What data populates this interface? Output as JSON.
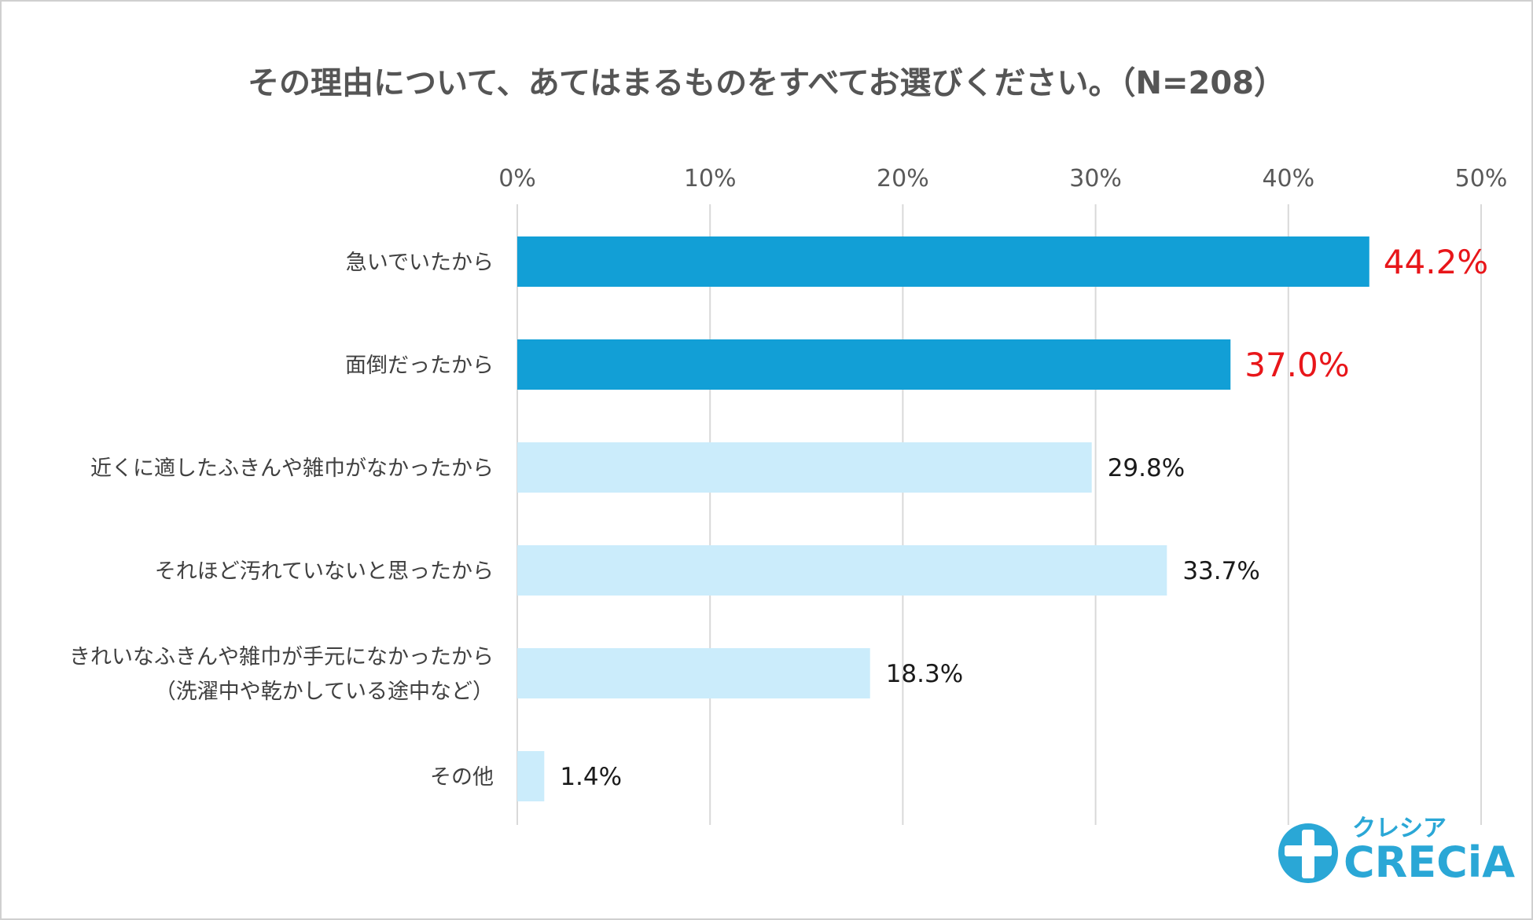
{
  "chart_data": {
    "type": "bar",
    "orientation": "horizontal",
    "title": "その理由について、あてはまるものをすべてお選びください。（N=208）",
    "axis": {
      "min": 0,
      "max": 50,
      "step": 10,
      "unit": "%",
      "grid": true,
      "position": "top"
    },
    "ticks": [
      "0%",
      "10%",
      "20%",
      "30%",
      "40%",
      "50%"
    ],
    "categories": [
      {
        "label_lines": [
          "急いでいたから"
        ],
        "value": 44.2,
        "value_label": "44.2%",
        "highlight": true
      },
      {
        "label_lines": [
          "面倒だったから"
        ],
        "value": 37.0,
        "value_label": "37.0%",
        "highlight": true
      },
      {
        "label_lines": [
          "近くに適したふきんや雑巾がなかったから"
        ],
        "value": 29.8,
        "value_label": "29.8%",
        "highlight": false
      },
      {
        "label_lines": [
          "それほど汚れていないと思ったから"
        ],
        "value": 33.7,
        "value_label": "33.7%",
        "highlight": false
      },
      {
        "label_lines": [
          "きれいなふきんや雑巾が手元になかったから",
          "（洗濯中や乾かしている途中など）"
        ],
        "value": 18.3,
        "value_label": "18.3%",
        "highlight": false
      },
      {
        "label_lines": [
          "その他"
        ],
        "value": 1.4,
        "value_label": "1.4%",
        "highlight": false
      }
    ],
    "colors": {
      "highlight_bar": "#129fd6",
      "normal_bar": "#cbecfb",
      "highlight_label": "#e8161a",
      "gridline": "#d9d9d9"
    }
  },
  "logo": {
    "kana": "クレシア",
    "brand": "CRECiA",
    "color": "#2aa7d6"
  }
}
